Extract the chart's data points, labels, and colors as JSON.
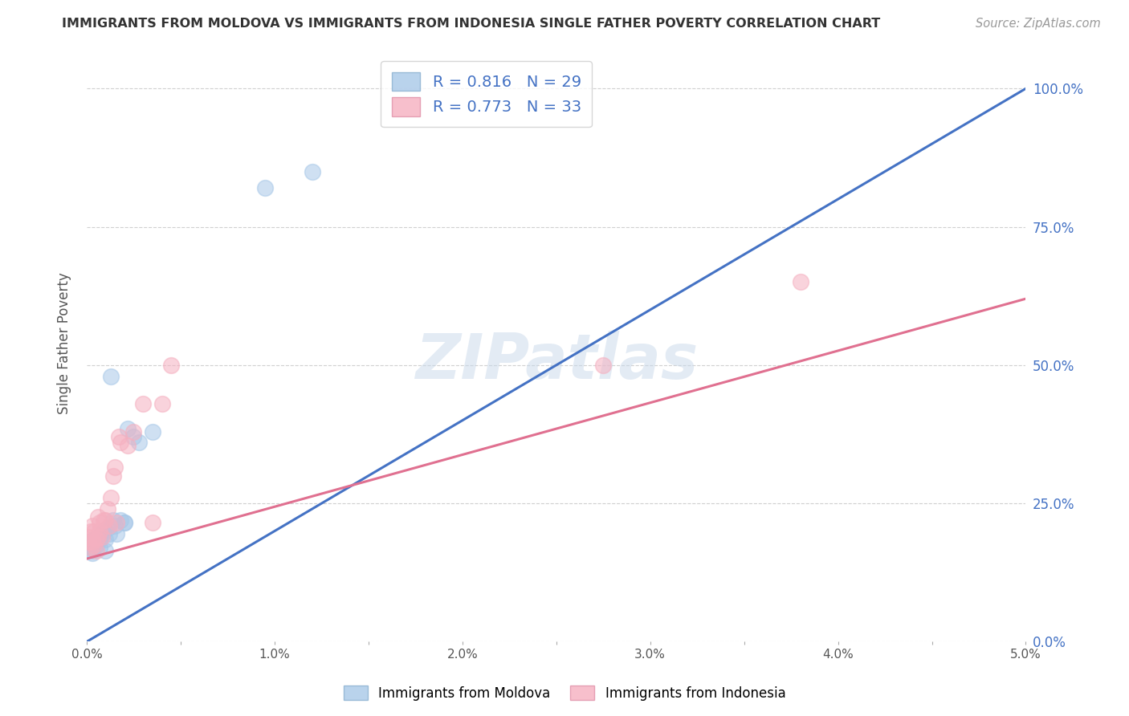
{
  "title": "IMMIGRANTS FROM MOLDOVA VS IMMIGRANTS FROM INDONESIA SINGLE FATHER POVERTY CORRELATION CHART",
  "source": "Source: ZipAtlas.com",
  "ylabel": "Single Father Poverty",
  "legend_moldova": "R = 0.816   N = 29",
  "legend_indonesia": "R = 0.773   N = 33",
  "moldova_color": "#a8c8e8",
  "indonesia_color": "#f5b0c0",
  "moldova_line_color": "#4472c4",
  "indonesia_line_color": "#e07090",
  "watermark": "ZIPatlas",
  "moldova_x": [
    0.0001,
    0.0002,
    0.0003,
    0.0003,
    0.0004,
    0.0005,
    0.0005,
    0.0006,
    0.0007,
    0.0007,
    0.0008,
    0.0009,
    0.001,
    0.001,
    0.0011,
    0.0012,
    0.0013,
    0.0014,
    0.0015,
    0.0016,
    0.0018,
    0.002,
    0.002,
    0.0022,
    0.0025,
    0.0028,
    0.0035,
    0.0095,
    0.012
  ],
  "moldova_y": [
    0.18,
    0.17,
    0.165,
    0.16,
    0.185,
    0.18,
    0.175,
    0.19,
    0.17,
    0.185,
    0.195,
    0.2,
    0.165,
    0.185,
    0.205,
    0.195,
    0.48,
    0.22,
    0.21,
    0.195,
    0.22,
    0.215,
    0.215,
    0.385,
    0.37,
    0.36,
    0.38,
    0.82,
    0.85
  ],
  "indonesia_x": [
    0.0001,
    0.0001,
    0.0002,
    0.0002,
    0.0003,
    0.0003,
    0.0004,
    0.0004,
    0.0005,
    0.0005,
    0.0006,
    0.0006,
    0.0007,
    0.0007,
    0.0008,
    0.0009,
    0.001,
    0.0011,
    0.0012,
    0.0013,
    0.0014,
    0.0015,
    0.0016,
    0.0017,
    0.0018,
    0.0022,
    0.0025,
    0.003,
    0.0035,
    0.004,
    0.0045,
    0.0275,
    0.038
  ],
  "indonesia_y": [
    0.18,
    0.19,
    0.17,
    0.2,
    0.18,
    0.21,
    0.2,
    0.175,
    0.165,
    0.185,
    0.225,
    0.19,
    0.2,
    0.215,
    0.19,
    0.22,
    0.22,
    0.24,
    0.21,
    0.26,
    0.3,
    0.315,
    0.215,
    0.37,
    0.36,
    0.355,
    0.38,
    0.43,
    0.215,
    0.43,
    0.5,
    0.5,
    0.65
  ],
  "moldova_line_x": [
    0.0,
    0.05
  ],
  "moldova_line_y": [
    0.0,
    1.0
  ],
  "indonesia_line_x": [
    0.0,
    0.05
  ],
  "indonesia_line_y": [
    0.15,
    0.62
  ],
  "xlim": [
    0.0,
    0.05
  ],
  "ylim": [
    0.0,
    1.08
  ],
  "background_color": "#ffffff",
  "grid_color": "#d0d0d0"
}
